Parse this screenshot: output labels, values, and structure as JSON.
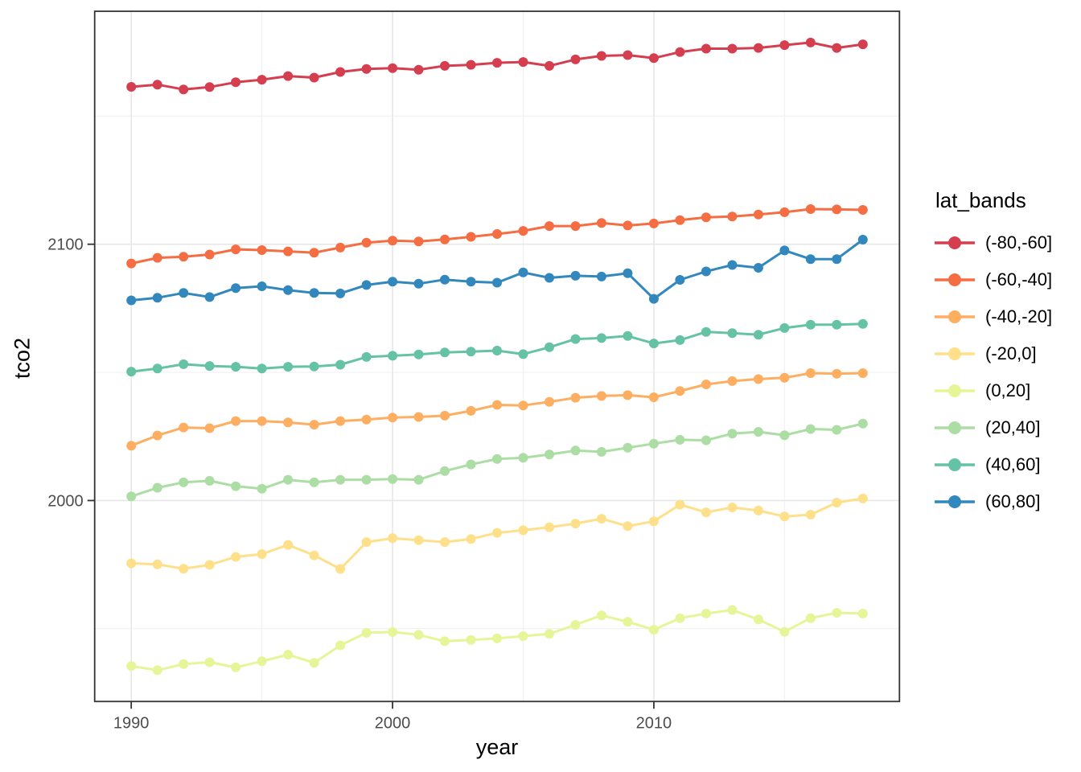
{
  "figure": {
    "background": "#ffffff",
    "panel_background": "#ffffff",
    "panel_border_color": "#333333",
    "grid_major_color": "#e7e7e7",
    "grid_minor_color": "#f1f1f1",
    "tick_mark_color": "#333333",
    "tick_label_color": "#4d4d4d"
  },
  "axes": {
    "x": {
      "title": "year",
      "tick_labels": [
        "1990",
        "2000",
        "2010"
      ],
      "tick_values": [
        1990,
        2000,
        2010
      ],
      "minor_values": [
        1995,
        2005,
        2015
      ]
    },
    "y": {
      "title": "tco2",
      "tick_labels": [
        "2000",
        "2100"
      ],
      "tick_values": [
        2000,
        2100
      ],
      "minor_values": [
        1950,
        2050,
        2150
      ]
    }
  },
  "legend": {
    "title": "lat_bands",
    "entries": [
      {
        "label": "(-80,-60]",
        "color": "#d53e4f"
      },
      {
        "label": "(-60,-40]",
        "color": "#f46d43"
      },
      {
        "label": "(-40,-20]",
        "color": "#fdae61"
      },
      {
        "label": "(-20,0]",
        "color": "#fee08b"
      },
      {
        "label": "(0,20]",
        "color": "#e6f598"
      },
      {
        "label": "(20,40]",
        "color": "#abdda4"
      },
      {
        "label": "(40,60]",
        "color": "#66c2a5"
      },
      {
        "label": "(60,80]",
        "color": "#3288bd"
      }
    ]
  },
  "chart_data": {
    "type": "line",
    "title": "",
    "xlabel": "year",
    "ylabel": "tco2",
    "legend_title": "lat_bands",
    "legend_position": "right",
    "grid": true,
    "marker": "circle",
    "xlim": [
      1988.6,
      2019.4
    ],
    "ylim": [
      1921.6,
      2190.9
    ],
    "x": [
      1990,
      1991,
      1992,
      1993,
      1994,
      1995,
      1996,
      1997,
      1998,
      1999,
      2000,
      2001,
      2002,
      2003,
      2004,
      2005,
      2006,
      2007,
      2008,
      2009,
      2010,
      2011,
      2012,
      2013,
      2014,
      2015,
      2016,
      2017,
      2018
    ],
    "series": [
      {
        "name": "(-80,-60]",
        "color": "#d53e4f",
        "values": [
          2161.4,
          2162.3,
          2160.4,
          2161.3,
          2163.2,
          2164.2,
          2165.6,
          2165.0,
          2167.2,
          2168.4,
          2168.7,
          2168.1,
          2169.6,
          2170.0,
          2170.8,
          2171.1,
          2169.6,
          2172.1,
          2173.5,
          2173.8,
          2172.6,
          2175.0,
          2176.3,
          2176.3,
          2176.6,
          2177.7,
          2178.7,
          2176.6,
          2178.0
        ]
      },
      {
        "name": "(-60,-40]",
        "color": "#f46d43",
        "values": [
          2092.5,
          2094.7,
          2095.1,
          2096.0,
          2098.0,
          2097.7,
          2097.2,
          2096.7,
          2098.7,
          2100.6,
          2101.4,
          2101.1,
          2101.9,
          2102.9,
          2104.0,
          2105.2,
          2107.1,
          2107.1,
          2108.3,
          2107.3,
          2108.1,
          2109.4,
          2110.5,
          2110.8,
          2111.6,
          2112.5,
          2113.7,
          2113.6,
          2113.4
        ]
      },
      {
        "name": "(-40,-20]",
        "color": "#fdae61",
        "values": [
          2021.4,
          2025.4,
          2028.5,
          2028.2,
          2031.0,
          2031.0,
          2030.5,
          2029.6,
          2031.0,
          2031.6,
          2032.4,
          2032.6,
          2033.1,
          2035.0,
          2037.3,
          2037.1,
          2038.5,
          2040.1,
          2040.8,
          2041.1,
          2040.3,
          2042.7,
          2045.3,
          2046.6,
          2047.4,
          2047.9,
          2049.7,
          2049.5,
          2049.7
        ]
      },
      {
        "name": "(-20,0]",
        "color": "#fee08b",
        "values": [
          1975.5,
          1975.1,
          1973.4,
          1974.9,
          1978.0,
          1979.1,
          1982.7,
          1978.6,
          1973.3,
          1983.8,
          1985.3,
          1984.5,
          1983.8,
          1985.0,
          1987.4,
          1988.4,
          1989.6,
          1991.0,
          1992.9,
          1990.0,
          1991.9,
          1998.4,
          1995.4,
          1997.3,
          1996.1,
          1993.8,
          1994.5,
          1999.2,
          2000.8
        ]
      },
      {
        "name": "(0,20]",
        "color": "#e6f598",
        "values": [
          1935.4,
          1933.8,
          1936.2,
          1936.9,
          1934.9,
          1937.3,
          1939.9,
          1936.7,
          1943.5,
          1948.4,
          1948.7,
          1947.6,
          1945.1,
          1945.6,
          1946.2,
          1947.1,
          1948.0,
          1951.5,
          1955.2,
          1952.7,
          1949.6,
          1954.1,
          1955.9,
          1957.3,
          1953.6,
          1948.8,
          1954.1,
          1956.2,
          1955.9
        ]
      },
      {
        "name": "(20,40]",
        "color": "#abdda4",
        "values": [
          2001.6,
          2005.0,
          2007.1,
          2007.7,
          2005.6,
          2004.6,
          2008.1,
          2007.1,
          2008.1,
          2008.1,
          2008.4,
          2008.1,
          2011.5,
          2014.1,
          2016.2,
          2016.7,
          2018.0,
          2019.5,
          2019.0,
          2020.6,
          2022.2,
          2023.7,
          2023.5,
          2026.1,
          2026.8,
          2025.5,
          2027.9,
          2027.6,
          2030.0
        ]
      },
      {
        "name": "(40,60]",
        "color": "#66c2a5",
        "values": [
          2050.3,
          2051.5,
          2053.2,
          2052.5,
          2052.2,
          2051.5,
          2052.2,
          2052.3,
          2053.0,
          2056.0,
          2056.5,
          2057.0,
          2057.8,
          2058.1,
          2058.5,
          2057.1,
          2059.8,
          2063.0,
          2063.4,
          2064.2,
          2061.3,
          2062.6,
          2065.8,
          2065.3,
          2064.7,
          2067.3,
          2068.6,
          2068.6,
          2068.9
        ]
      },
      {
        "name": "(60,80]",
        "color": "#3288bd",
        "values": [
          2078.1,
          2079.1,
          2081.0,
          2079.4,
          2082.9,
          2083.6,
          2082.1,
          2081.0,
          2080.8,
          2084.1,
          2085.4,
          2084.6,
          2086.2,
          2085.4,
          2085.0,
          2089.0,
          2086.9,
          2087.7,
          2087.4,
          2088.7,
          2078.7,
          2086.1,
          2089.4,
          2091.9,
          2090.8,
          2097.6,
          2094.2,
          2094.2,
          2101.8
        ]
      }
    ]
  }
}
